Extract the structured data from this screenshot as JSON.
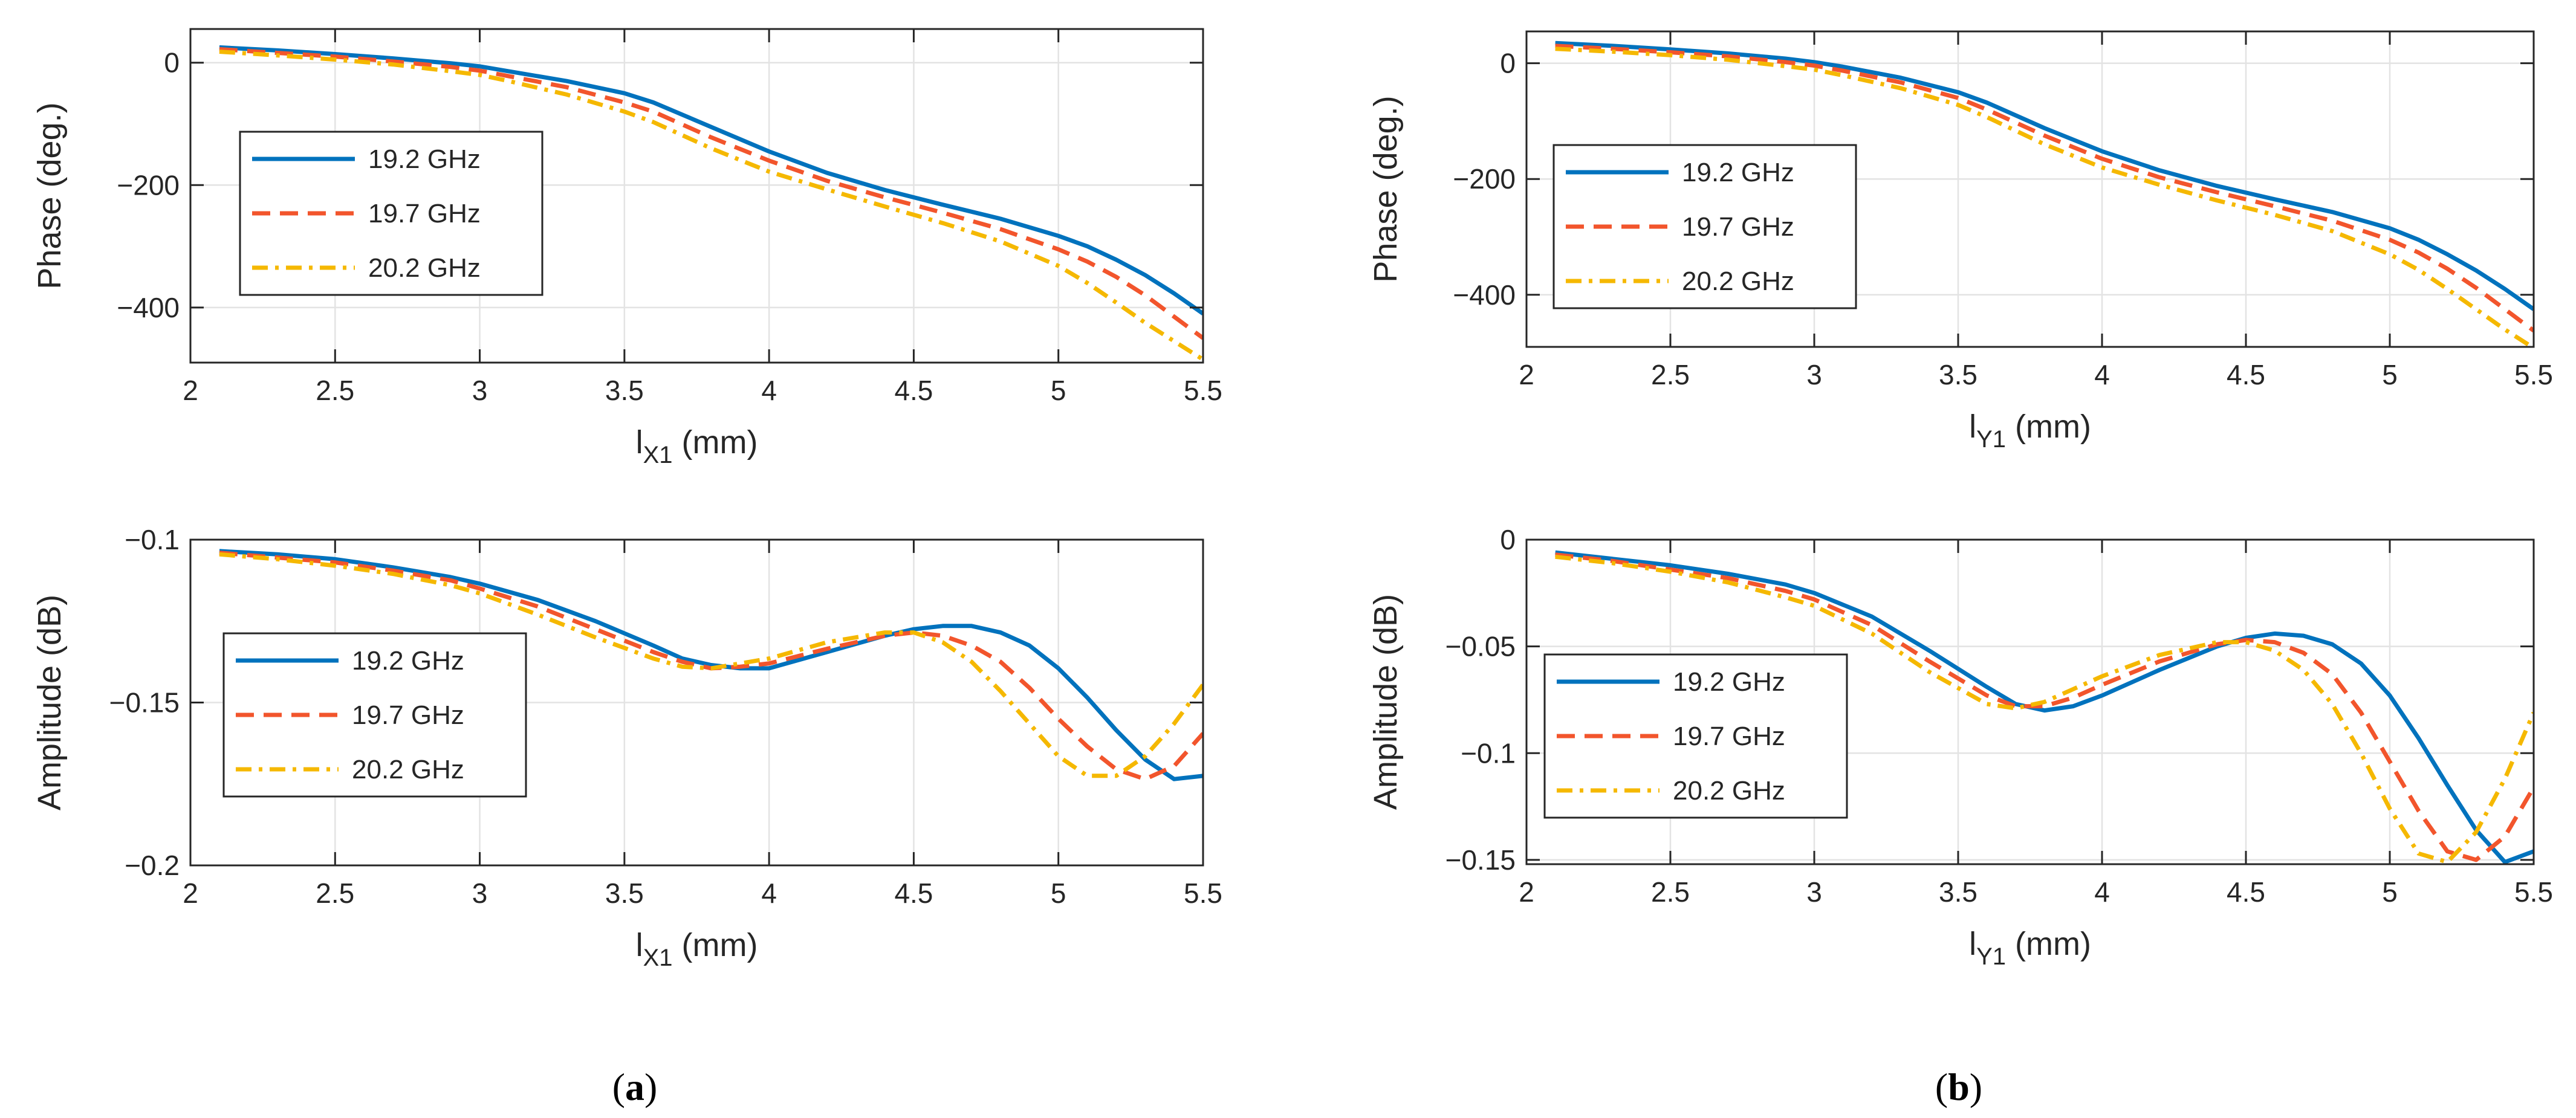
{
  "panels": [
    {
      "prefix": "(",
      "letter": "a",
      "suffix": ")"
    },
    {
      "prefix": "(",
      "letter": "b",
      "suffix": ")"
    }
  ],
  "styles": {
    "series_colors": [
      "#0072BD",
      "#F2552C",
      "#F5B800"
    ],
    "series_dash": [
      "solid",
      "dashed",
      "dashdot"
    ]
  },
  "chart_data": [
    {
      "id": "a-phase",
      "type": "line",
      "xlabel_main": "l",
      "xlabel_sub": "X1",
      "xlabel_unit": " (mm)",
      "ylabel": "Phase (deg.)",
      "xlim": [
        2,
        5.5
      ],
      "ylim": [
        -490,
        55
      ],
      "xticks": [
        2,
        2.5,
        3,
        3.5,
        4,
        4.5,
        5,
        5.5
      ],
      "xtick_labels": [
        "2",
        "2.5",
        "3",
        "3.5",
        "4",
        "4.5",
        "5",
        "5.5"
      ],
      "yticks": [
        0,
        -200,
        -400
      ],
      "ytick_labels": [
        "0",
        "−200",
        "−400"
      ],
      "grid": true,
      "legend_position": "middle-left",
      "x": [
        2.1,
        2.3,
        2.5,
        2.7,
        2.9,
        3.0,
        3.1,
        3.3,
        3.5,
        3.6,
        3.8,
        4.0,
        4.2,
        4.4,
        4.6,
        4.8,
        5.0,
        5.1,
        5.2,
        5.3,
        5.4,
        5.5
      ],
      "series": [
        {
          "name": "19.2 GHz",
          "values": [
            25,
            20,
            14,
            7,
            -1,
            -6,
            -14,
            -30,
            -50,
            -65,
            -105,
            -145,
            -180,
            -208,
            -232,
            -255,
            -283,
            -300,
            -322,
            -347,
            -377,
            -410
          ]
        },
        {
          "name": "19.7 GHz",
          "values": [
            22,
            16,
            10,
            2,
            -7,
            -13,
            -22,
            -40,
            -65,
            -80,
            -122,
            -160,
            -193,
            -220,
            -245,
            -272,
            -305,
            -325,
            -350,
            -380,
            -415,
            -450
          ]
        },
        {
          "name": "20.2 GHz",
          "values": [
            18,
            12,
            5,
            -3,
            -14,
            -20,
            -30,
            -52,
            -80,
            -97,
            -140,
            -178,
            -207,
            -235,
            -262,
            -292,
            -332,
            -360,
            -392,
            -425,
            -455,
            -485
          ]
        }
      ]
    },
    {
      "id": "a-amplitude",
      "type": "line",
      "xlabel_main": "l",
      "xlabel_sub": "X1",
      "xlabel_unit": " (mm)",
      "ylabel": "Amplitude (dB)",
      "xlim": [
        2,
        5.5
      ],
      "ylim": [
        -0.2,
        -0.1
      ],
      "xticks": [
        2,
        2.5,
        3,
        3.5,
        4,
        4.5,
        5,
        5.5
      ],
      "xtick_labels": [
        "2",
        "2.5",
        "3",
        "3.5",
        "4",
        "4.5",
        "5",
        "5.5"
      ],
      "yticks": [
        -0.1,
        -0.15,
        -0.2
      ],
      "ytick_labels": [
        "−0.1",
        "−0.15",
        "−0.2"
      ],
      "grid": true,
      "legend_position": "bottom-left",
      "x": [
        2.1,
        2.3,
        2.5,
        2.7,
        2.9,
        3.0,
        3.2,
        3.4,
        3.6,
        3.7,
        3.8,
        3.9,
        4.0,
        4.2,
        4.4,
        4.5,
        4.6,
        4.7,
        4.8,
        4.9,
        5.0,
        5.1,
        5.2,
        5.3,
        5.4,
        5.5
      ],
      "series": [
        {
          "name": "19.2 GHz",
          "values": [
            -0.1035,
            -0.1045,
            -0.106,
            -0.1085,
            -0.1115,
            -0.1135,
            -0.1185,
            -0.125,
            -0.1325,
            -0.1365,
            -0.1385,
            -0.1395,
            -0.1395,
            -0.1345,
            -0.1295,
            -0.1275,
            -0.1265,
            -0.1265,
            -0.1285,
            -0.1325,
            -0.1395,
            -0.1485,
            -0.1585,
            -0.1675,
            -0.1735,
            -0.1725
          ]
        },
        {
          "name": "19.7 GHz",
          "values": [
            -0.104,
            -0.1055,
            -0.107,
            -0.1095,
            -0.1125,
            -0.115,
            -0.1205,
            -0.1275,
            -0.1345,
            -0.1375,
            -0.1395,
            -0.139,
            -0.138,
            -0.1335,
            -0.1295,
            -0.1285,
            -0.1295,
            -0.1325,
            -0.1375,
            -0.1455,
            -0.155,
            -0.1635,
            -0.1705,
            -0.1735,
            -0.1695,
            -0.1595
          ]
        },
        {
          "name": "20.2 GHz",
          "values": [
            -0.1045,
            -0.106,
            -0.108,
            -0.1105,
            -0.114,
            -0.1165,
            -0.123,
            -0.13,
            -0.1365,
            -0.139,
            -0.1395,
            -0.138,
            -0.1365,
            -0.1315,
            -0.1285,
            -0.1285,
            -0.1315,
            -0.1375,
            -0.1465,
            -0.1565,
            -0.1665,
            -0.1725,
            -0.1725,
            -0.1665,
            -0.1565,
            -0.1445
          ]
        }
      ]
    },
    {
      "id": "b-phase",
      "type": "line",
      "xlabel_main": "l",
      "xlabel_sub": "Y1",
      "xlabel_unit": " (mm)",
      "ylabel": "Phase (deg.)",
      "xlim": [
        2,
        5.5
      ],
      "ylim": [
        -490,
        55
      ],
      "xticks": [
        2,
        2.5,
        3,
        3.5,
        4,
        4.5,
        5,
        5.5
      ],
      "xtick_labels": [
        "2",
        "2.5",
        "3",
        "3.5",
        "4",
        "4.5",
        "5",
        "5.5"
      ],
      "yticks": [
        0,
        -200,
        -400
      ],
      "ytick_labels": [
        "0",
        "−200",
        "−400"
      ],
      "grid": true,
      "legend_position": "middle-left",
      "x": [
        2.1,
        2.3,
        2.5,
        2.7,
        2.9,
        3.0,
        3.1,
        3.3,
        3.5,
        3.6,
        3.8,
        4.0,
        4.2,
        4.4,
        4.6,
        4.8,
        5.0,
        5.1,
        5.2,
        5.3,
        5.4,
        5.5
      ],
      "series": [
        {
          "name": "19.2 GHz",
          "values": [
            35,
            30,
            24,
            17,
            8,
            2,
            -6,
            -25,
            -50,
            -68,
            -112,
            -152,
            -185,
            -212,
            -235,
            -257,
            -285,
            -305,
            -330,
            -358,
            -390,
            -425
          ]
        },
        {
          "name": "19.7 GHz",
          "values": [
            30,
            25,
            19,
            12,
            2,
            -4,
            -13,
            -33,
            -60,
            -80,
            -125,
            -165,
            -197,
            -223,
            -247,
            -272,
            -305,
            -327,
            -355,
            -388,
            -425,
            -462
          ]
        },
        {
          "name": "20.2 GHz",
          "values": [
            25,
            20,
            14,
            6,
            -5,
            -11,
            -21,
            -43,
            -72,
            -93,
            -140,
            -180,
            -210,
            -237,
            -262,
            -290,
            -330,
            -357,
            -390,
            -425,
            -460,
            -492
          ]
        }
      ]
    },
    {
      "id": "b-amplitude",
      "type": "line",
      "xlabel_main": "l",
      "xlabel_sub": "Y1",
      "xlabel_unit": " (mm)",
      "ylabel": "Amplitude (dB)",
      "xlim": [
        2,
        5.5
      ],
      "ylim": [
        -0.152,
        0
      ],
      "xticks": [
        2,
        2.5,
        3,
        3.5,
        4,
        4.5,
        5,
        5.5
      ],
      "xtick_labels": [
        "2",
        "2.5",
        "3",
        "3.5",
        "4",
        "4.5",
        "5",
        "5.5"
      ],
      "yticks": [
        0,
        -0.05,
        -0.1,
        -0.15
      ],
      "ytick_labels": [
        "0",
        "−0.05",
        "−0.1",
        "−0.15"
      ],
      "grid": true,
      "legend_position": "bottom-left",
      "x": [
        2.1,
        2.3,
        2.5,
        2.7,
        2.9,
        3.0,
        3.2,
        3.4,
        3.6,
        3.7,
        3.8,
        3.9,
        4.0,
        4.2,
        4.4,
        4.5,
        4.6,
        4.7,
        4.8,
        4.9,
        5.0,
        5.1,
        5.2,
        5.3,
        5.4,
        5.5
      ],
      "series": [
        {
          "name": "19.2 GHz",
          "values": [
            -0.006,
            -0.009,
            -0.012,
            -0.016,
            -0.021,
            -0.025,
            -0.036,
            -0.052,
            -0.069,
            -0.077,
            -0.08,
            -0.078,
            -0.073,
            -0.061,
            -0.05,
            -0.046,
            -0.044,
            -0.045,
            -0.049,
            -0.058,
            -0.073,
            -0.093,
            -0.115,
            -0.136,
            -0.151,
            -0.146
          ]
        },
        {
          "name": "19.7 GHz",
          "values": [
            -0.007,
            -0.01,
            -0.014,
            -0.018,
            -0.024,
            -0.028,
            -0.04,
            -0.057,
            -0.073,
            -0.078,
            -0.078,
            -0.074,
            -0.068,
            -0.057,
            -0.049,
            -0.047,
            -0.048,
            -0.053,
            -0.063,
            -0.081,
            -0.104,
            -0.127,
            -0.146,
            -0.15,
            -0.139,
            -0.116
          ]
        },
        {
          "name": "20.2 GHz",
          "values": [
            -0.008,
            -0.011,
            -0.015,
            -0.02,
            -0.027,
            -0.031,
            -0.044,
            -0.062,
            -0.077,
            -0.079,
            -0.076,
            -0.07,
            -0.064,
            -0.054,
            -0.048,
            -0.048,
            -0.052,
            -0.061,
            -0.077,
            -0.1,
            -0.126,
            -0.147,
            -0.151,
            -0.137,
            -0.112,
            -0.081
          ]
        }
      ]
    }
  ]
}
